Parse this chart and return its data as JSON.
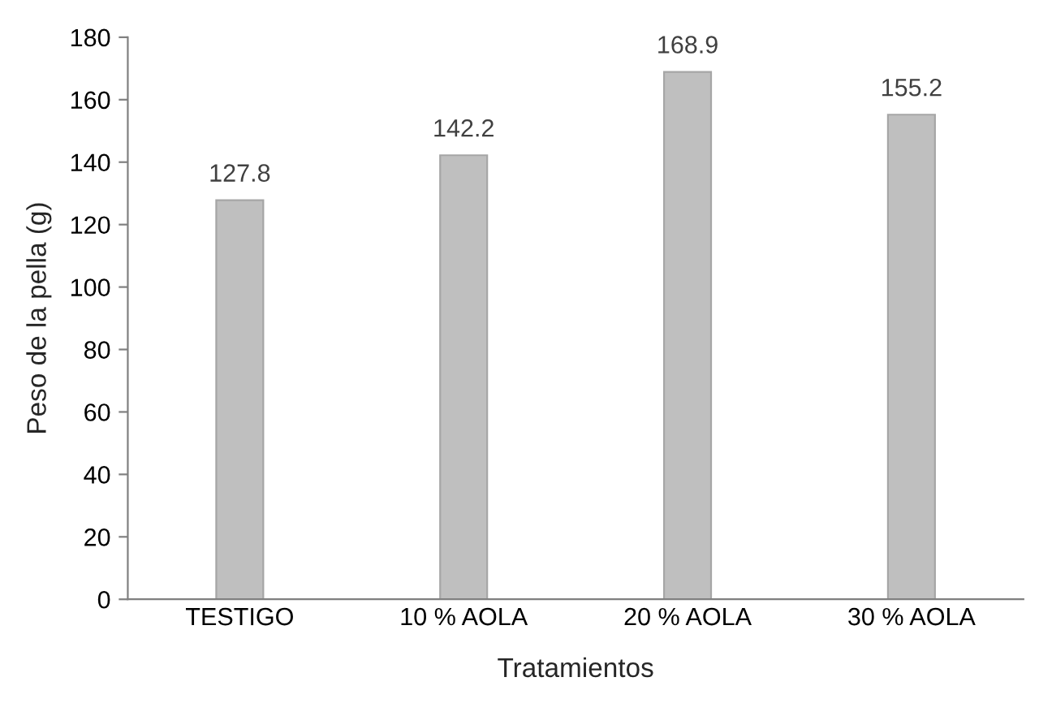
{
  "chart_data": {
    "type": "bar",
    "xlabel": "Tratamientos",
    "ylabel": "Peso de la pella (g)",
    "categories": [
      "TESTIGO",
      "10 % AOLA",
      "20 % AOLA",
      "30 % AOLA"
    ],
    "values": [
      127.8,
      142.2,
      168.9,
      155.2
    ],
    "color": "#bfbfbf",
    "ylim": [
      0,
      180
    ],
    "yticks": [
      0,
      20,
      40,
      60,
      80,
      100,
      120,
      140,
      160,
      180
    ],
    "data_labels": true,
    "grid": false,
    "legend": false
  }
}
